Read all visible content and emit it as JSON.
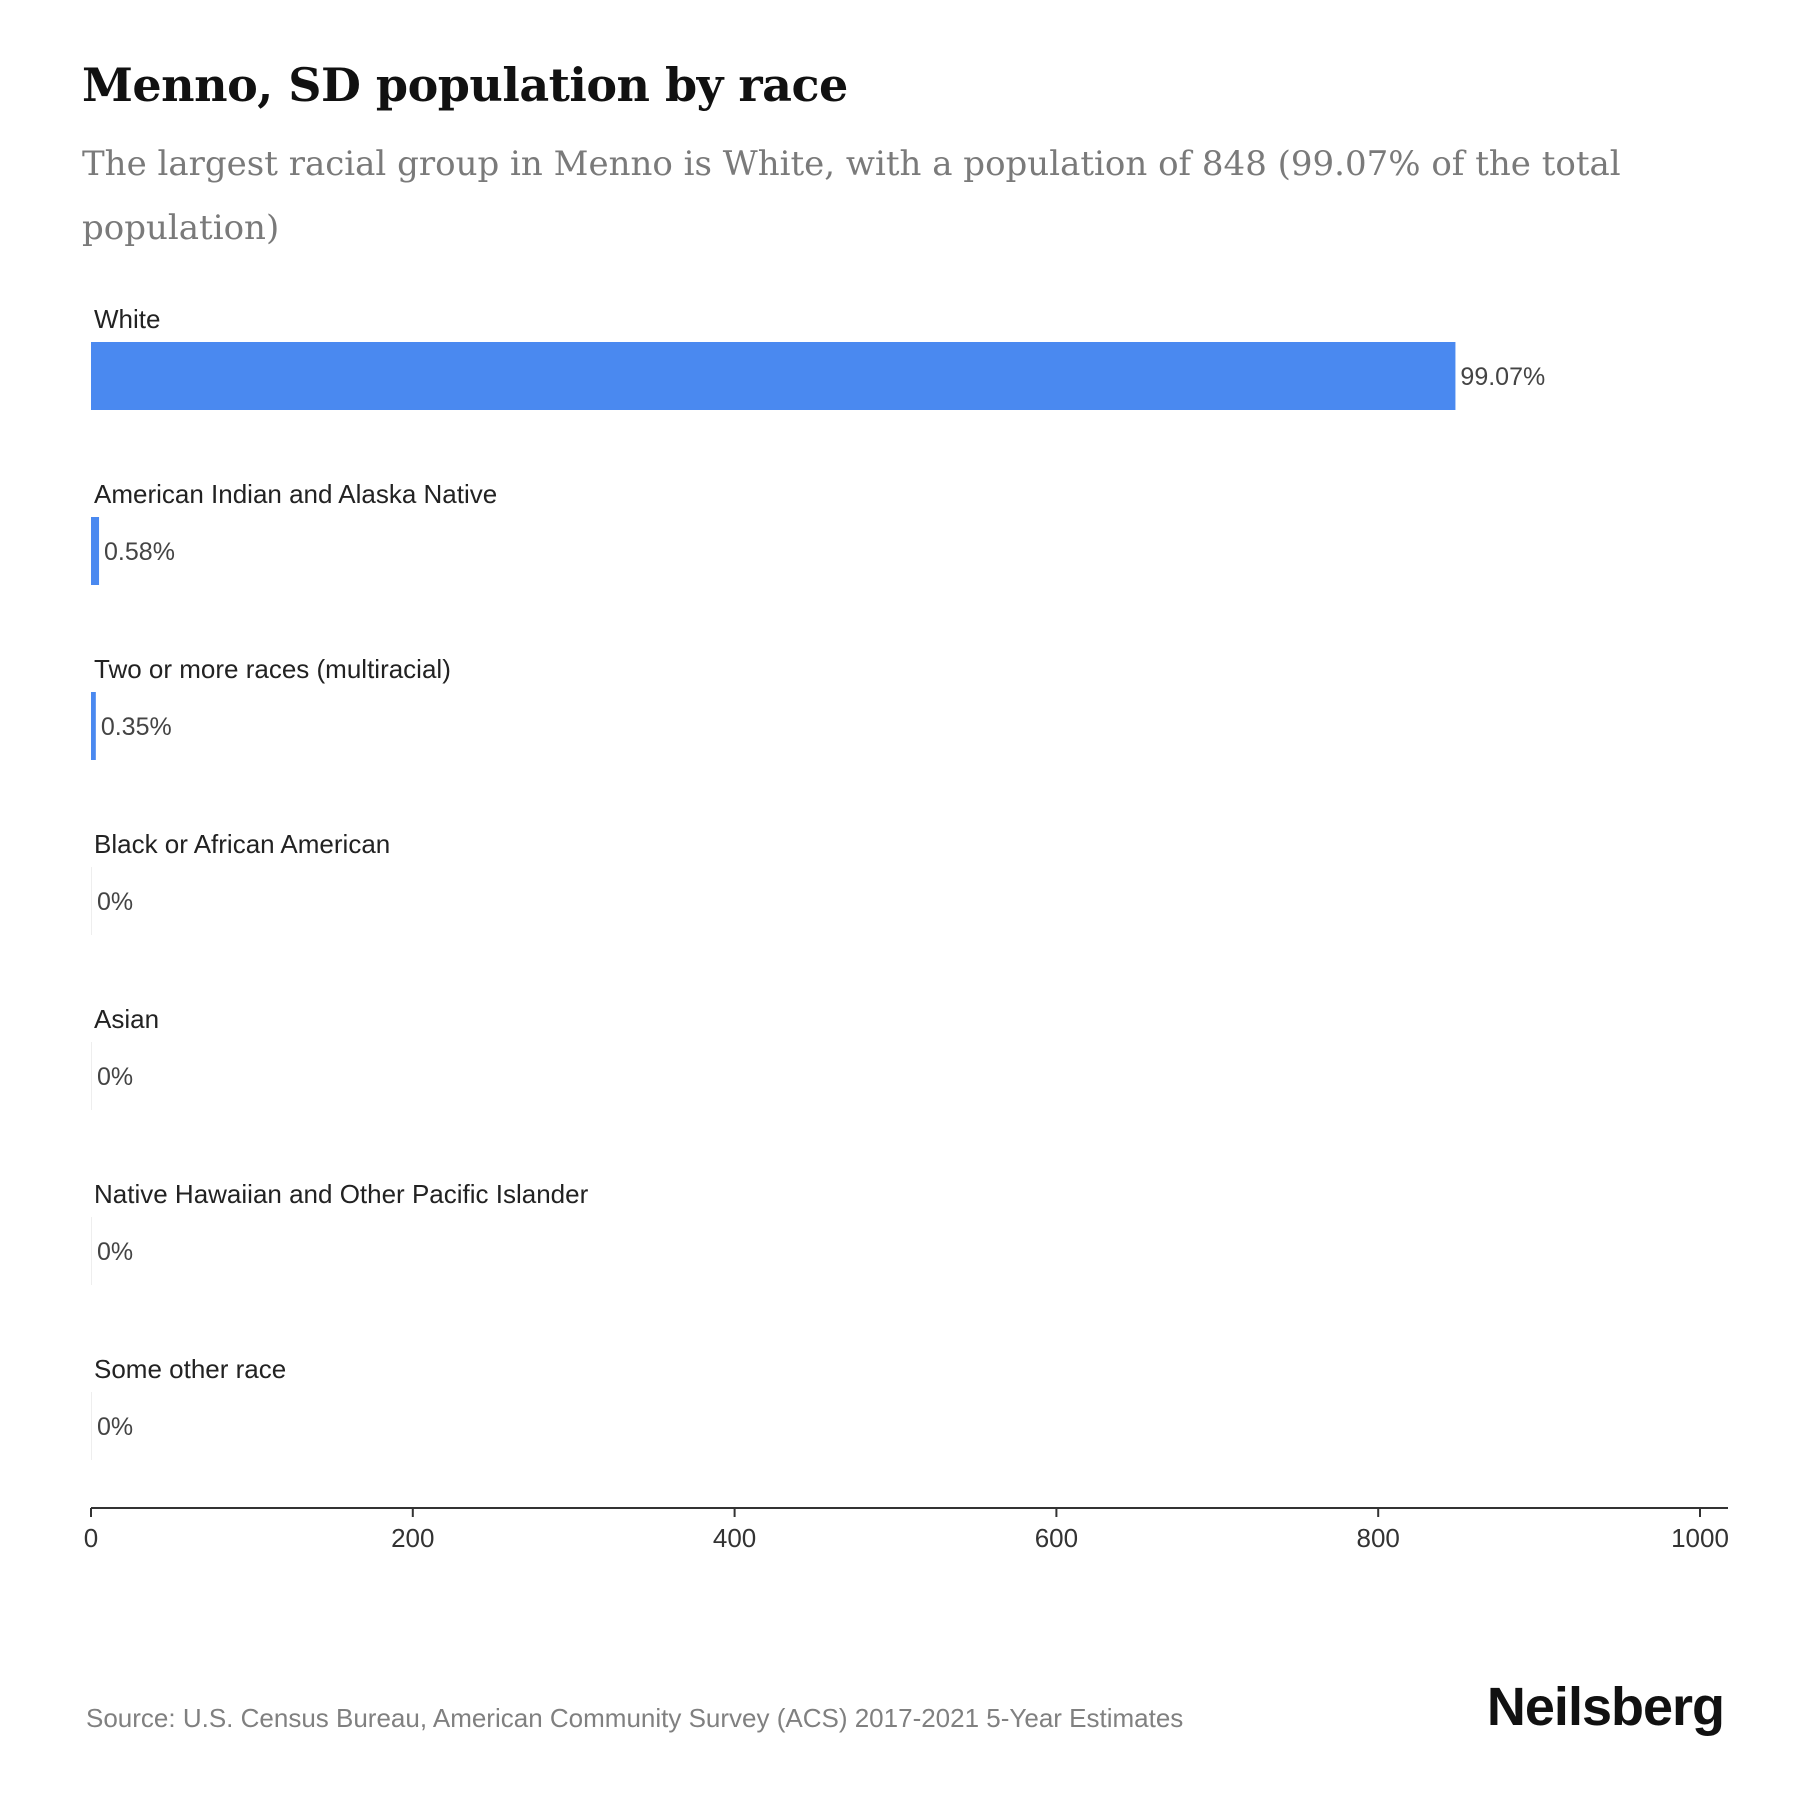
{
  "header": {
    "title": "Menno, SD population by race",
    "subtitle": "The largest racial group in Menno is White, with a population of 848 (99.07% of the total population)"
  },
  "footer": {
    "source": "Source: U.S. Census Bureau, American Community Survey (ACS) 2017-2021 5-Year Estimates",
    "brand": "Neilsberg"
  },
  "colors": {
    "bar": "#4a89f0",
    "axis": "#333333"
  },
  "chart_data": {
    "type": "bar",
    "orientation": "horizontal",
    "title": "Menno, SD population by race",
    "subtitle": "The largest racial group in Menno is White, with a population of 848 (99.07% of the total population)",
    "categories": [
      "White",
      "American Indian and Alaska Native",
      "Two or more races (multiracial)",
      "Black or African American",
      "Asian",
      "Native Hawaiian and Other Pacific Islander",
      "Some other race"
    ],
    "values": [
      848,
      5,
      3,
      0,
      0,
      0,
      0
    ],
    "data_labels": [
      "99.07%",
      "0.58%",
      "0.35%",
      "0%",
      "0%",
      "0%",
      "0%"
    ],
    "xlim": [
      0,
      1000
    ],
    "xticks": [
      0,
      200,
      400,
      600,
      800,
      1000
    ],
    "xtick_labels": [
      "0",
      "200",
      "400",
      "600",
      "800",
      "1000"
    ],
    "grid": false,
    "legend": "none"
  }
}
